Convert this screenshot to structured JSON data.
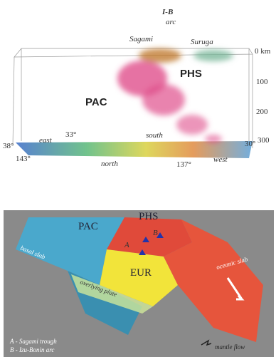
{
  "top_panel": {
    "arc_label": {
      "line1": "I-B",
      "line2": "arc"
    },
    "sagami": "Sagami",
    "suruga": "Suruga",
    "phs": "PHS",
    "pac": "PAC",
    "depth_ticks": [
      "0 km",
      "100",
      "200",
      "300"
    ],
    "map_labels": {
      "lat_left": "38°",
      "lon_left": "143°",
      "east": "east",
      "lat_mid": "33°",
      "south": "south",
      "north": "north",
      "lon_right": "137°",
      "west": "west",
      "lat_right": "30°"
    }
  },
  "bottom_panel": {
    "pac": "PAC",
    "phs": "PHS",
    "eur": "EUR",
    "a": "A",
    "b": "B",
    "basal_slab": "basal slab",
    "overlying_plate": "overlying plate",
    "oceanic_slab": "oceanic slab",
    "legend_a": "A - Sagami trough",
    "legend_b": "B - Izu-Bonin arc",
    "mantle_flow": "mantle flow"
  }
}
